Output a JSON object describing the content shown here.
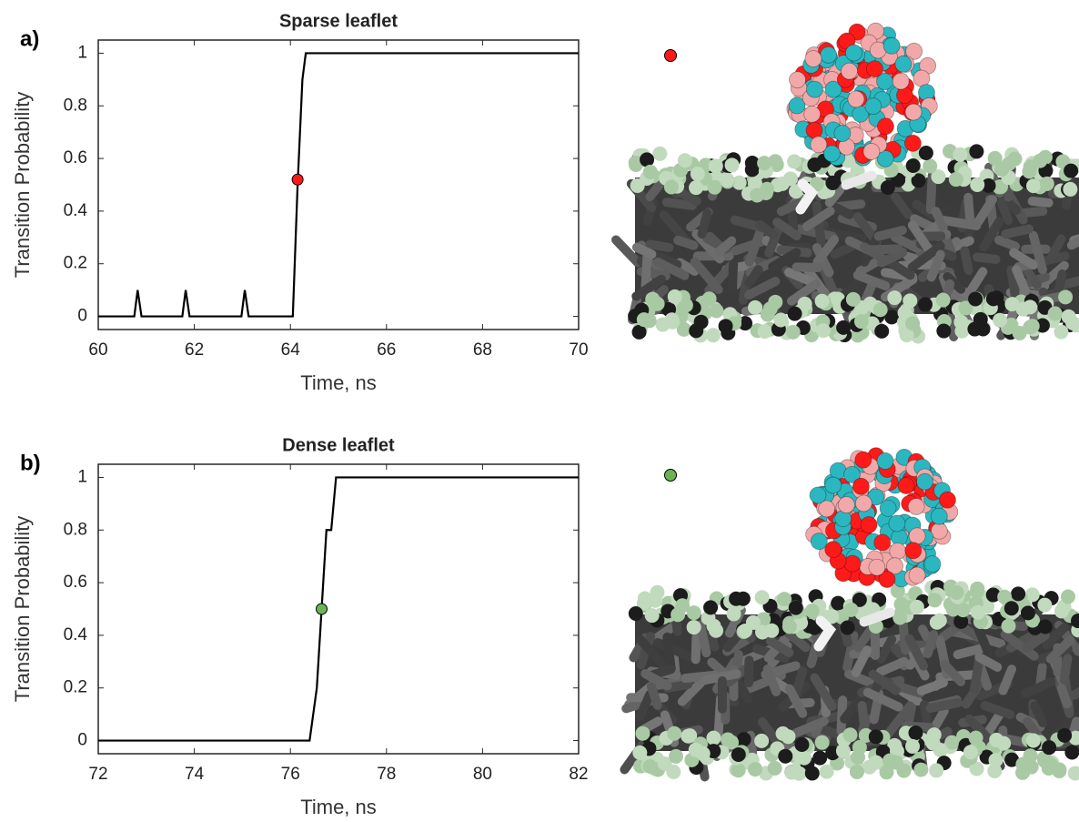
{
  "chart_data": [
    {
      "type": "line",
      "panel": "a)",
      "title": "Sparse leaflet",
      "xlabel": "Time, ns",
      "ylabel": "Transition Probability",
      "x": [
        60,
        60.75,
        60.82,
        60.9,
        61.75,
        61.82,
        61.9,
        62.98,
        63.05,
        63.13,
        64.05,
        64.15,
        64.25,
        64.32,
        70
      ],
      "series": [
        {
          "color": "#000000",
          "values": [
            0,
            0,
            0.1,
            0,
            0,
            0.1,
            0,
            0,
            0.1,
            0,
            0,
            0.5,
            0.9,
            1,
            1
          ]
        }
      ],
      "marker": {
        "x": 64.15,
        "y": 0.52,
        "color": "#ff1a1a"
      },
      "xlim": [
        60,
        70
      ],
      "ylim": [
        -0.05,
        1.05
      ],
      "xticks": [
        60,
        62,
        64,
        66,
        68,
        70
      ],
      "yticks": [
        0,
        0.2,
        0.4,
        0.6,
        0.8,
        1
      ]
    },
    {
      "type": "line",
      "panel": "b)",
      "title": "Dense leaflet",
      "xlabel": "Time, ns",
      "ylabel": "Transition Probability",
      "x": [
        72,
        76.4,
        76.55,
        76.65,
        76.75,
        76.85,
        76.95,
        82
      ],
      "series": [
        {
          "color": "#000000",
          "values": [
            0,
            0,
            0.2,
            0.5,
            0.8,
            0.8,
            1,
            1
          ]
        }
      ],
      "marker": {
        "x": 76.65,
        "y": 0.5,
        "color": "#6db356"
      },
      "xlim": [
        72,
        82
      ],
      "ylim": [
        -0.05,
        1.05
      ],
      "xticks": [
        72,
        74,
        76,
        78,
        80,
        82
      ],
      "yticks": [
        0,
        0.2,
        0.4,
        0.6,
        0.8,
        1
      ]
    }
  ]
}
